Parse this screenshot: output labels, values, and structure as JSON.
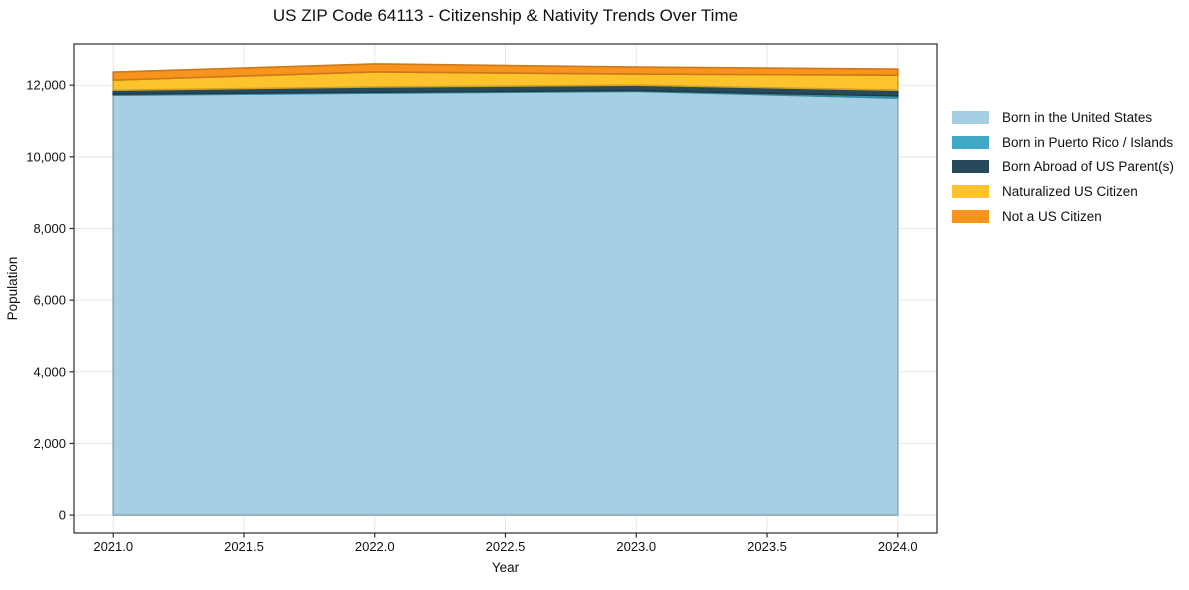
{
  "figure": {
    "background": "#ffffff"
  },
  "chart_data": {
    "type": "area",
    "stacked": true,
    "title": "US ZIP Code 64113 - Citizenship & Nativity Trends Over Time",
    "xlabel": "Year",
    "ylabel": "Population",
    "x": [
      2021,
      2022,
      2023,
      2024
    ],
    "series": [
      {
        "name": "Born in the United States",
        "color": "#a6cfe4",
        "values": [
          11720,
          11780,
          11830,
          11640
        ]
      },
      {
        "name": "Born in Puerto Rico / Islands",
        "color": "#3fa8c5",
        "values": [
          30,
          25,
          20,
          60
        ]
      },
      {
        "name": "Born Abroad of US Parent(s)",
        "color": "#26495c",
        "values": [
          110,
          145,
          150,
          160
        ]
      },
      {
        "name": "Naturalized US Citizen",
        "color": "#fcc32c",
        "values": [
          280,
          420,
          310,
          420
        ]
      },
      {
        "name": "Not a US Citizen",
        "color": "#f8941e",
        "values": [
          225,
          225,
          195,
          170
        ]
      }
    ],
    "totals": [
      12365,
      12595,
      12505,
      12450
    ],
    "x_tick_values": [
      2021,
      2021.5,
      2022,
      2022.5,
      2023,
      2023.5,
      2024
    ],
    "x_tick_labels": [
      "2021.0",
      "2021.5",
      "2022.0",
      "2022.5",
      "2023.0",
      "2023.5",
      "2024.0"
    ],
    "y_tick_values": [
      0,
      2000,
      4000,
      6000,
      8000,
      10000,
      12000
    ],
    "y_tick_labels": [
      "0",
      "2,000",
      "4,000",
      "6,000",
      "8,000",
      "10,000",
      "12,000"
    ],
    "xlim": [
      2020.85,
      2024.15
    ],
    "ylim": [
      -500,
      13150
    ],
    "grid": true,
    "grid_color": "#e7e7e7",
    "axis_color": "#2b2b2b",
    "text_color": "#111111",
    "legend_position": "right"
  }
}
